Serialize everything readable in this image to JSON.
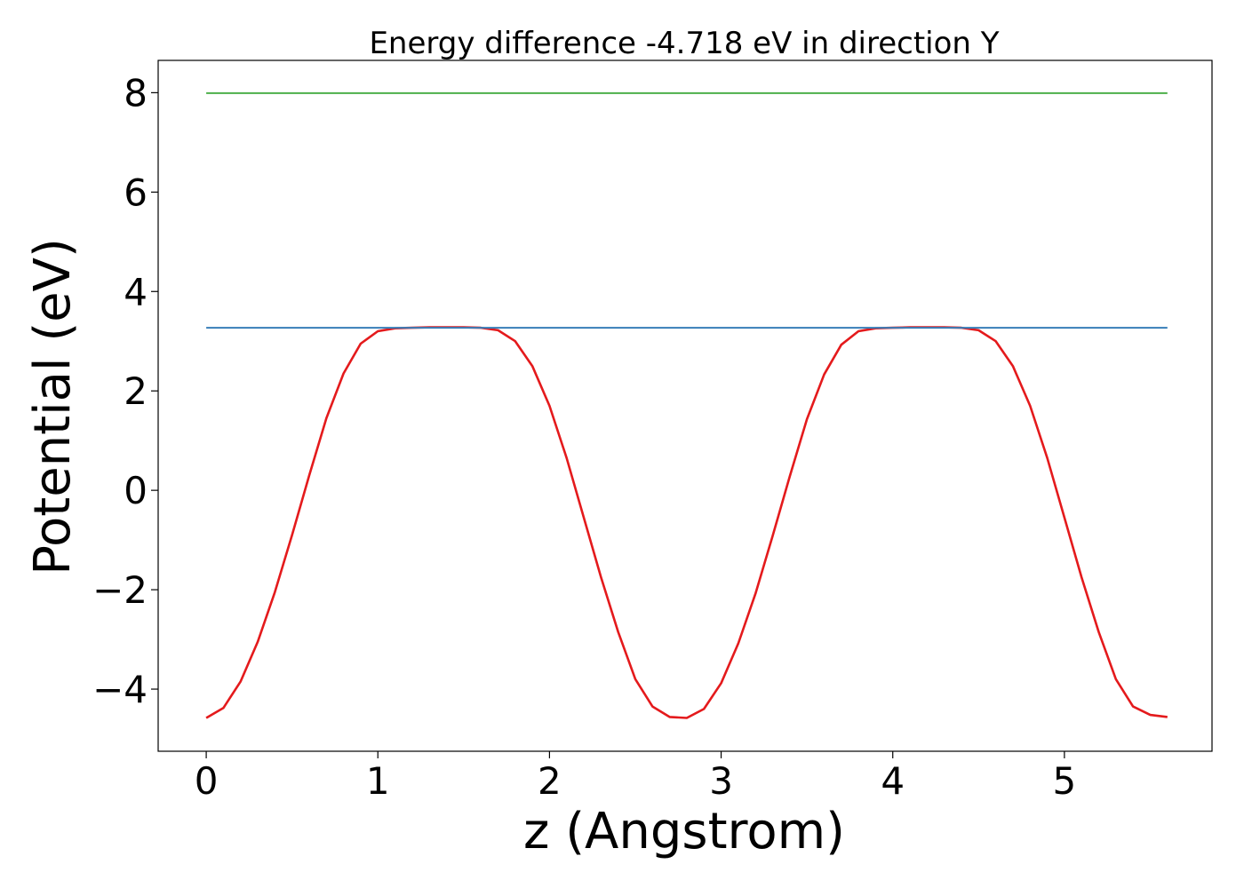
{
  "chart_data": {
    "type": "line",
    "title": "Energy difference -4.718 eV in direction Y",
    "xlabel": "z (Angstrom)",
    "ylabel": "Potential (eV)",
    "xlim": [
      -0.28,
      5.86
    ],
    "ylim": [
      -5.25,
      8.65
    ],
    "xticks": [
      0,
      1,
      2,
      3,
      4,
      5
    ],
    "yticks": [
      -4,
      -2,
      0,
      2,
      4,
      6,
      8
    ],
    "ytick_labels": [
      "−4",
      "−2",
      "0",
      "2",
      "4",
      "6",
      "8"
    ],
    "grid": false,
    "colors": {
      "potential": "#e41a1c",
      "level_low": "#377eb8",
      "level_high": "#4daf4a"
    },
    "series": [
      {
        "color_key": "potential",
        "x": [
          0.0,
          0.1,
          0.2,
          0.3,
          0.4,
          0.5,
          0.6,
          0.7,
          0.8,
          0.9,
          1.0,
          1.1,
          1.2,
          1.3,
          1.4,
          1.5,
          1.6,
          1.7,
          1.8,
          1.9,
          2.0,
          2.1,
          2.2,
          2.3,
          2.4,
          2.5,
          2.6,
          2.7,
          2.8,
          2.9,
          3.0,
          3.1,
          3.2,
          3.3,
          3.4,
          3.5,
          3.6,
          3.7,
          3.8,
          3.9,
          4.0,
          4.1,
          4.2,
          4.3,
          4.4,
          4.5,
          4.6,
          4.7,
          4.8,
          4.9,
          5.0,
          5.1,
          5.2,
          5.3,
          5.4,
          5.5,
          5.6
        ],
        "y": [
          -4.58,
          -4.38,
          -3.85,
          -3.05,
          -2.05,
          -0.9,
          0.3,
          1.45,
          2.35,
          2.95,
          3.2,
          3.26,
          3.27,
          3.28,
          3.28,
          3.28,
          3.27,
          3.22,
          3.0,
          2.5,
          1.7,
          0.65,
          -0.55,
          -1.75,
          -2.85,
          -3.8,
          -4.35,
          -4.56,
          -4.58,
          -4.4,
          -3.88,
          -3.08,
          -2.08,
          -0.92,
          0.28,
          1.43,
          2.33,
          2.93,
          3.2,
          3.26,
          3.27,
          3.28,
          3.28,
          3.28,
          3.27,
          3.22,
          3.0,
          2.5,
          1.7,
          0.65,
          -0.55,
          -1.75,
          -2.85,
          -3.8,
          -4.35,
          -4.52,
          -4.56
        ]
      },
      {
        "color_key": "level_low",
        "x": [
          0.0,
          5.6
        ],
        "y": [
          3.27,
          3.27
        ]
      },
      {
        "color_key": "level_high",
        "x": [
          0.0,
          5.6
        ],
        "y": [
          7.99,
          7.99
        ]
      }
    ]
  }
}
